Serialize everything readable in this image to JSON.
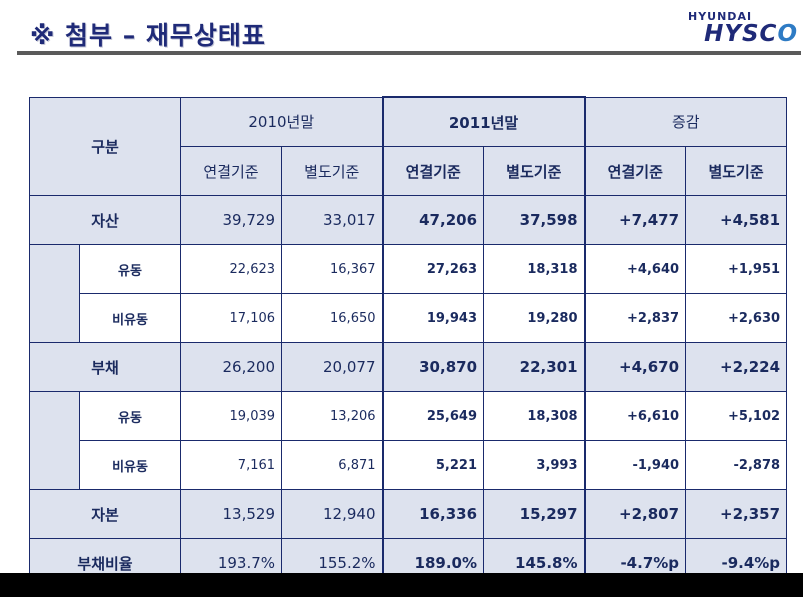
{
  "header": {
    "title": "※ 첨부 – 재무상태표",
    "logo_top": "HYUNDAI",
    "logo_main_a": "HYSC",
    "logo_main_b": "O"
  },
  "table": {
    "label_header": "구분",
    "year_2010": "2010년말",
    "year_2011": "2011년말",
    "change": "증감",
    "subcols": [
      "연결기준",
      "별도기준",
      "연결기준",
      "별도기준",
      "연결기준",
      "별도기준"
    ],
    "rows": [
      {
        "label": "자산",
        "values": [
          "39,729",
          "33,017",
          "47,206",
          "37,598",
          "+7,477",
          "+4,581"
        ]
      },
      {
        "label": "유동",
        "values": [
          "22,623",
          "16,367",
          "27,263",
          "18,318",
          "+4,640",
          "+1,951"
        ]
      },
      {
        "label": "비유동",
        "values": [
          "17,106",
          "16,650",
          "19,943",
          "19,280",
          "+2,837",
          "+2,630"
        ]
      },
      {
        "label": "부채",
        "values": [
          "26,200",
          "20,077",
          "30,870",
          "22,301",
          "+4,670",
          "+2,224"
        ]
      },
      {
        "label": "유동",
        "values": [
          "19,039",
          "13,206",
          "25,649",
          "18,308",
          "+6,610",
          "+5,102"
        ]
      },
      {
        "label": "비유동",
        "values": [
          "7,161",
          "6,871",
          "5,221",
          "3,993",
          "-1,940",
          "-2,878"
        ]
      },
      {
        "label": "자본",
        "values": [
          "13,529",
          "12,940",
          "16,336",
          "15,297",
          "+2,807",
          "+2,357"
        ]
      },
      {
        "label": "부채비율",
        "values": [
          "193.7%",
          "155.2%",
          "189.0%",
          "145.8%",
          "-4.7%p",
          "-9.4%p"
        ]
      }
    ]
  }
}
